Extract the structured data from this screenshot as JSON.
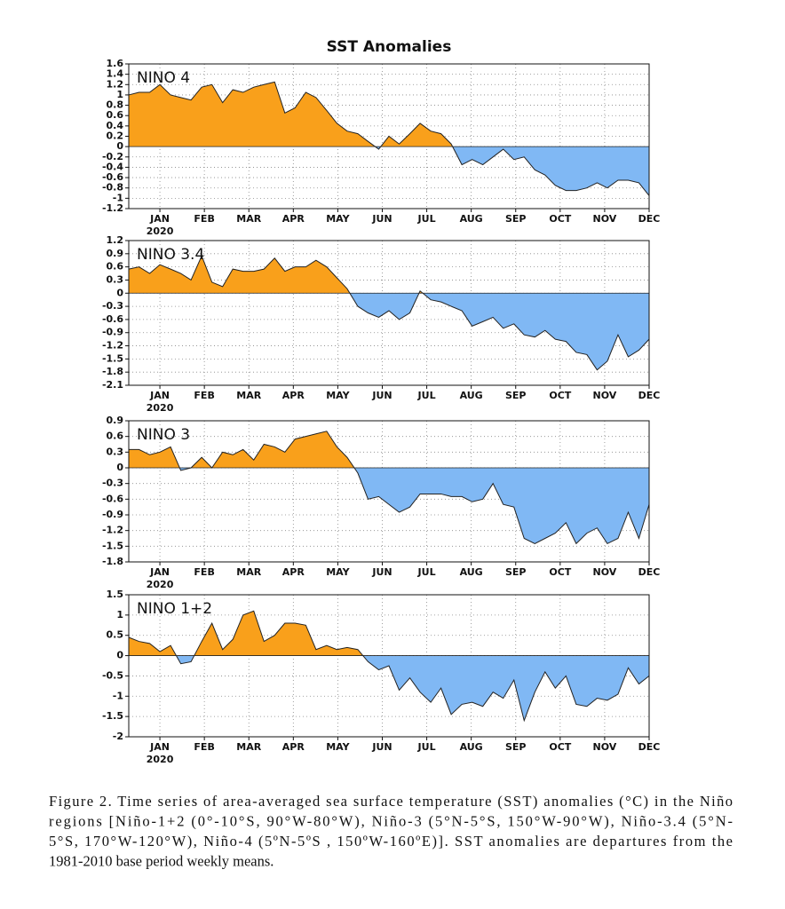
{
  "title": "SST Anomalies",
  "caption_lines": [
    "Figure  2. Time series of area-averaged sea surface temperature (SST) anomalies  (°C) in the Niño",
    "regions [Niño-1+2  (0°-10°S, 90°W-80°W), Niño-3 (5°N-5°S, 150°W-90°W), Niño-3.4  (5°N-",
    "5°S, 170°W-120°W),  Niño-4  (5ºN-5ºS  , 150ºW-160ºE)].  SST anomalies  are departures  from the",
    "1981-2010  base period weekly means."
  ],
  "chart_data": [
    {
      "type": "area",
      "label": "NINO 4",
      "year_label": "2020",
      "x": [
        0.3,
        0.53,
        0.77,
        1.0,
        1.24,
        1.47,
        1.7,
        1.94,
        2.17,
        2.41,
        2.64,
        2.87,
        3.11,
        3.34,
        3.58,
        3.81,
        4.04,
        4.28,
        4.51,
        4.75,
        4.98,
        5.21,
        5.45,
        5.68,
        5.92,
        6.15,
        6.38,
        6.62,
        6.85,
        7.09,
        7.32,
        7.55,
        7.79,
        8.02,
        8.26,
        8.49,
        8.72,
        8.96,
        9.19,
        9.43,
        9.66,
        9.89,
        10.13,
        10.36,
        10.6,
        10.83,
        11.06,
        11.3,
        11.53,
        11.77,
        12.0
      ],
      "values": [
        1.0,
        1.05,
        1.05,
        1.2,
        1.0,
        0.95,
        0.9,
        1.15,
        1.2,
        0.85,
        1.1,
        1.05,
        1.15,
        1.2,
        1.25,
        0.65,
        0.75,
        1.05,
        0.95,
        0.7,
        0.45,
        0.3,
        0.25,
        0.1,
        -0.05,
        0.2,
        0.05,
        0.25,
        0.45,
        0.3,
        0.25,
        0.05,
        -0.35,
        -0.25,
        -0.35,
        -0.2,
        -0.05,
        -0.25,
        -0.2,
        -0.45,
        -0.55,
        -0.75,
        -0.85,
        -0.85,
        -0.8,
        -0.7,
        -0.8,
        -0.65,
        -0.65,
        -0.7,
        -0.95
      ],
      "xlim": [
        0.3,
        12
      ],
      "xticks": [
        {
          "value": 1,
          "label": "JAN"
        },
        {
          "value": 2,
          "label": "FEB"
        },
        {
          "value": 3,
          "label": "MAR"
        },
        {
          "value": 4,
          "label": "APR"
        },
        {
          "value": 5,
          "label": "MAY"
        },
        {
          "value": 6,
          "label": "JUN"
        },
        {
          "value": 7,
          "label": "JUL"
        },
        {
          "value": 8,
          "label": "AUG"
        },
        {
          "value": 9,
          "label": "SEP"
        },
        {
          "value": 10,
          "label": "OCT"
        },
        {
          "value": 11,
          "label": "NOV"
        },
        {
          "value": 12,
          "label": "DEC"
        }
      ],
      "ylim": [
        -1.2,
        1.6
      ],
      "yticks": [
        1.6,
        1.4,
        1.2,
        1,
        0.8,
        0.6,
        0.4,
        0.2,
        0,
        -0.2,
        -0.4,
        -0.6,
        -0.8,
        -1,
        -1.2
      ],
      "grid": true,
      "positive_color": "#f9a01b",
      "negative_color": "#80b8f4"
    },
    {
      "type": "area",
      "label": "NINO 3.4",
      "year_label": "2020",
      "x": [
        0.3,
        0.53,
        0.77,
        1.0,
        1.24,
        1.47,
        1.7,
        1.94,
        2.17,
        2.41,
        2.64,
        2.87,
        3.11,
        3.34,
        3.58,
        3.81,
        4.04,
        4.28,
        4.51,
        4.75,
        4.98,
        5.21,
        5.45,
        5.68,
        5.92,
        6.15,
        6.38,
        6.62,
        6.85,
        7.09,
        7.32,
        7.55,
        7.79,
        8.02,
        8.26,
        8.49,
        8.72,
        8.96,
        9.19,
        9.43,
        9.66,
        9.89,
        10.13,
        10.36,
        10.6,
        10.83,
        11.06,
        11.3,
        11.53,
        11.77,
        12.0
      ],
      "values": [
        0.55,
        0.6,
        0.45,
        0.65,
        0.55,
        0.45,
        0.3,
        0.85,
        0.25,
        0.15,
        0.55,
        0.5,
        0.5,
        0.55,
        0.8,
        0.5,
        0.6,
        0.6,
        0.75,
        0.6,
        0.35,
        0.1,
        -0.3,
        -0.45,
        -0.55,
        -0.4,
        -0.6,
        -0.45,
        0.05,
        -0.15,
        -0.2,
        -0.3,
        -0.4,
        -0.75,
        -0.65,
        -0.55,
        -0.8,
        -0.7,
        -0.95,
        -1.0,
        -0.85,
        -1.05,
        -1.1,
        -1.35,
        -1.4,
        -1.75,
        -1.55,
        -0.95,
        -1.45,
        -1.3,
        -1.05
      ],
      "xlim": [
        0.3,
        12
      ],
      "xticks": [
        {
          "value": 1,
          "label": "JAN"
        },
        {
          "value": 2,
          "label": "FEB"
        },
        {
          "value": 3,
          "label": "MAR"
        },
        {
          "value": 4,
          "label": "APR"
        },
        {
          "value": 5,
          "label": "MAY"
        },
        {
          "value": 6,
          "label": "JUN"
        },
        {
          "value": 7,
          "label": "JUL"
        },
        {
          "value": 8,
          "label": "AUG"
        },
        {
          "value": 9,
          "label": "SEP"
        },
        {
          "value": 10,
          "label": "OCT"
        },
        {
          "value": 11,
          "label": "NOV"
        },
        {
          "value": 12,
          "label": "DEC"
        }
      ],
      "ylim": [
        -2.1,
        1.2
      ],
      "yticks": [
        1.2,
        0.9,
        0.6,
        0.3,
        0,
        -0.3,
        -0.6,
        -0.9,
        -1.2,
        -1.5,
        -1.8,
        -2.1
      ],
      "grid": true,
      "positive_color": "#f9a01b",
      "negative_color": "#80b8f4"
    },
    {
      "type": "area",
      "label": "NINO 3",
      "year_label": "2020",
      "x": [
        0.3,
        0.53,
        0.77,
        1.0,
        1.24,
        1.47,
        1.7,
        1.94,
        2.17,
        2.41,
        2.64,
        2.87,
        3.11,
        3.34,
        3.58,
        3.81,
        4.04,
        4.28,
        4.51,
        4.75,
        4.98,
        5.21,
        5.45,
        5.68,
        5.92,
        6.15,
        6.38,
        6.62,
        6.85,
        7.09,
        7.32,
        7.55,
        7.79,
        8.02,
        8.26,
        8.49,
        8.72,
        8.96,
        9.19,
        9.43,
        9.66,
        9.89,
        10.13,
        10.36,
        10.6,
        10.83,
        11.06,
        11.3,
        11.53,
        11.77,
        12.0
      ],
      "values": [
        0.35,
        0.35,
        0.25,
        0.3,
        0.4,
        -0.05,
        0.0,
        0.2,
        0.0,
        0.3,
        0.25,
        0.35,
        0.15,
        0.45,
        0.4,
        0.3,
        0.55,
        0.6,
        0.65,
        0.7,
        0.4,
        0.2,
        -0.1,
        -0.6,
        -0.55,
        -0.7,
        -0.85,
        -0.75,
        -0.5,
        -0.5,
        -0.5,
        -0.55,
        -0.55,
        -0.65,
        -0.6,
        -0.3,
        -0.7,
        -0.75,
        -1.35,
        -1.45,
        -1.35,
        -1.25,
        -1.05,
        -1.45,
        -1.25,
        -1.15,
        -1.45,
        -1.35,
        -0.85,
        -1.35,
        -0.7
      ],
      "xlim": [
        0.3,
        12
      ],
      "xticks": [
        {
          "value": 1,
          "label": "JAN"
        },
        {
          "value": 2,
          "label": "FEB"
        },
        {
          "value": 3,
          "label": "MAR"
        },
        {
          "value": 4,
          "label": "APR"
        },
        {
          "value": 5,
          "label": "MAY"
        },
        {
          "value": 6,
          "label": "JUN"
        },
        {
          "value": 7,
          "label": "JUL"
        },
        {
          "value": 8,
          "label": "AUG"
        },
        {
          "value": 9,
          "label": "SEP"
        },
        {
          "value": 10,
          "label": "OCT"
        },
        {
          "value": 11,
          "label": "NOV"
        },
        {
          "value": 12,
          "label": "DEC"
        }
      ],
      "ylim": [
        -1.8,
        0.9
      ],
      "yticks": [
        0.9,
        0.6,
        0.3,
        0,
        -0.3,
        -0.6,
        -0.9,
        -1.2,
        -1.5,
        -1.8
      ],
      "grid": true,
      "positive_color": "#f9a01b",
      "negative_color": "#80b8f4"
    },
    {
      "type": "area",
      "label": "NINO 1+2",
      "year_label": "2020",
      "x": [
        0.3,
        0.53,
        0.77,
        1.0,
        1.24,
        1.47,
        1.7,
        1.94,
        2.17,
        2.41,
        2.64,
        2.87,
        3.11,
        3.34,
        3.58,
        3.81,
        4.04,
        4.28,
        4.51,
        4.75,
        4.98,
        5.21,
        5.45,
        5.68,
        5.92,
        6.15,
        6.38,
        6.62,
        6.85,
        7.09,
        7.32,
        7.55,
        7.79,
        8.02,
        8.26,
        8.49,
        8.72,
        8.96,
        9.19,
        9.43,
        9.66,
        9.89,
        10.13,
        10.36,
        10.6,
        10.83,
        11.06,
        11.3,
        11.53,
        11.77,
        12.0
      ],
      "values": [
        0.45,
        0.35,
        0.3,
        0.1,
        0.25,
        -0.2,
        -0.15,
        0.35,
        0.8,
        0.15,
        0.4,
        1.0,
        1.1,
        0.35,
        0.5,
        0.8,
        0.8,
        0.75,
        0.15,
        0.25,
        0.15,
        0.2,
        0.15,
        -0.15,
        -0.35,
        -0.25,
        -0.85,
        -0.55,
        -0.9,
        -1.15,
        -0.8,
        -1.45,
        -1.2,
        -1.15,
        -1.25,
        -0.9,
        -1.05,
        -0.6,
        -1.6,
        -0.9,
        -0.4,
        -0.8,
        -0.5,
        -1.2,
        -1.25,
        -1.05,
        -1.1,
        -0.95,
        -0.3,
        -0.7,
        -0.5
      ],
      "xlim": [
        0.3,
        12
      ],
      "xticks": [
        {
          "value": 1,
          "label": "JAN"
        },
        {
          "value": 2,
          "label": "FEB"
        },
        {
          "value": 3,
          "label": "MAR"
        },
        {
          "value": 4,
          "label": "APR"
        },
        {
          "value": 5,
          "label": "MAY"
        },
        {
          "value": 6,
          "label": "JUN"
        },
        {
          "value": 7,
          "label": "JUL"
        },
        {
          "value": 8,
          "label": "AUG"
        },
        {
          "value": 9,
          "label": "SEP"
        },
        {
          "value": 10,
          "label": "OCT"
        },
        {
          "value": 11,
          "label": "NOV"
        },
        {
          "value": 12,
          "label": "DEC"
        }
      ],
      "ylim": [
        -2,
        1.5
      ],
      "yticks": [
        1.5,
        1,
        0.5,
        0,
        -0.5,
        -1,
        -1.5,
        -2
      ],
      "grid": true,
      "positive_color": "#f9a01b",
      "negative_color": "#80b8f4"
    }
  ]
}
